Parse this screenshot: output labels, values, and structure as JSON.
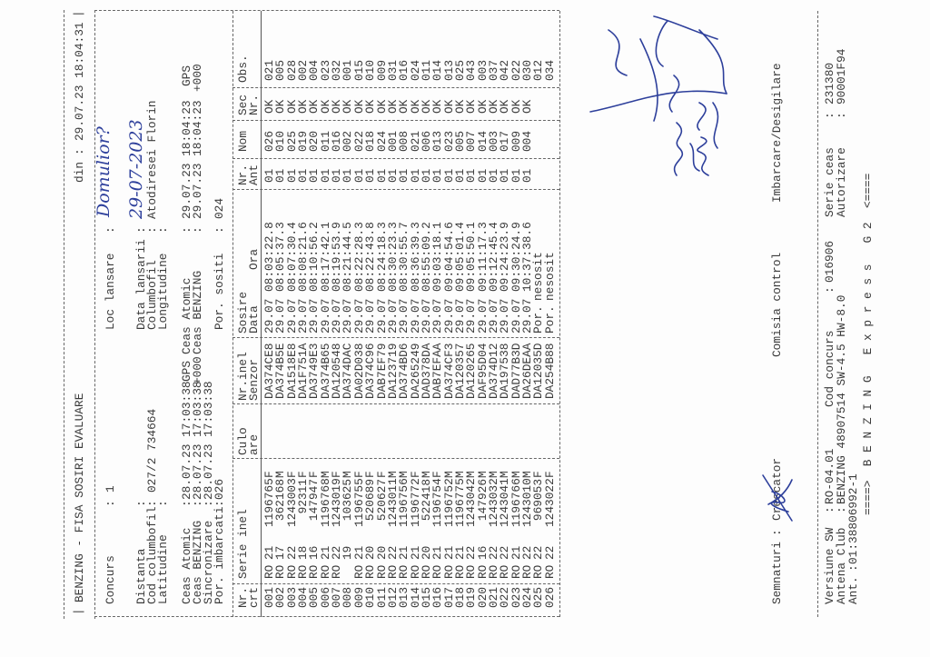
{
  "sep": ":",
  "header": {
    "title": "BENZING - FISA SOSIRI EVALUARE",
    "din_label": "din",
    "din_value": "29.07.23 18:04:31"
  },
  "info": {
    "concurs": {
      "label": "Concurs",
      "value": "1"
    },
    "loc_lansare": {
      "label": "Loc lansare",
      "value": "Domulior?"
    },
    "distanta": {
      "label": "Distanta",
      "value": ""
    },
    "cod_columbofil": {
      "label": "Cod columbofil",
      "value": "027/2 734664"
    },
    "latitudine": {
      "label": "Latitudine",
      "value": ""
    },
    "data_lansarii": {
      "label": "Data lansarii",
      "value": "29-07-2023"
    },
    "columbofil": {
      "label": "Columbofil",
      "value": "Atodiresei Florin"
    },
    "longitudine": {
      "label": "Longitudine",
      "value": ""
    },
    "start_ceas_atomic": {
      "label": "Ceas Atomic",
      "value": "28.07.23 17:03:38",
      "suffix": "GPS"
    },
    "start_ceas_benzing": {
      "label": "Ceas BENZING",
      "value": "28.07.23 17:03:38",
      "suffix": "+000"
    },
    "sincronizare": {
      "label": "Sincronizare",
      "value": "28.07.23 17:03:38"
    },
    "por_imbarcati": {
      "label": "Por. imbarcati",
      "value": "026"
    },
    "end_ceas_atomic": {
      "label": "Ceas Atomic",
      "value": "29.07.23 18:04:23",
      "suffix": "GPS"
    },
    "end_ceas_benzing": {
      "label": "Ceas BENZING",
      "value": "29.07.23 18:04:23",
      "suffix": "+000"
    },
    "por_sositi": {
      "label": "Por. sositi",
      "value": "024"
    }
  },
  "table": {
    "headers": {
      "nr": [
        "Nr.",
        "crt"
      ],
      "serie": "Serie inel",
      "culoare": [
        "Culo",
        "are"
      ],
      "senzor": [
        "Nr.inel",
        "Senzor"
      ],
      "sosire": [
        "Sosire",
        "Data",
        "Ora"
      ],
      "ant": [
        "Nr.",
        "Ant"
      ],
      "nom": "Nom",
      "sec": [
        "Sec",
        "Nr."
      ],
      "obs": "Obs."
    },
    "rows": [
      {
        "nr": "001",
        "country": "RO",
        "year": "21",
        "number": "1196765",
        "sex": "F",
        "sensor": "DA374CE8",
        "date": "29.07",
        "time": "08:03:22.8",
        "ant": "01",
        "nom": "026",
        "sec": "OK",
        "obs": "021"
      },
      {
        "nr": "002",
        "country": "RO",
        "year": "17",
        "number": "362168",
        "sex": "M",
        "sensor": "DA374B5E",
        "date": "29.07",
        "time": "08:05:37.3",
        "ant": "01",
        "nom": "010",
        "sec": "OK",
        "obs": "005"
      },
      {
        "nr": "003",
        "country": "RO",
        "year": "22",
        "number": "1243003",
        "sex": "F",
        "sensor": "DA1518E8",
        "date": "29.07",
        "time": "08:07:30.4",
        "ant": "01",
        "nom": "025",
        "sec": "OK",
        "obs": "028"
      },
      {
        "nr": "004",
        "country": "RO",
        "year": "18",
        "number": "92311",
        "sex": "F",
        "sensor": "DA1F751A",
        "date": "29.07",
        "time": "08:08:21.6",
        "ant": "01",
        "nom": "019",
        "sec": "OK",
        "obs": "002"
      },
      {
        "nr": "005",
        "country": "RO",
        "year": "16",
        "number": "147947",
        "sex": "F",
        "sensor": "DA3749E3",
        "date": "29.07",
        "time": "08:10:56.2",
        "ant": "01",
        "nom": "020",
        "sec": "OK",
        "obs": "004"
      },
      {
        "nr": "006",
        "country": "RO",
        "year": "21",
        "number": "1196768",
        "sex": "M",
        "sensor": "DA374B65",
        "date": "29.07",
        "time": "08:17:42.1",
        "ant": "01",
        "nom": "011",
        "sec": "OK",
        "obs": "023"
      },
      {
        "nr": "007",
        "country": "RO",
        "year": "22",
        "number": "1243019",
        "sex": "F",
        "sensor": "DA120548",
        "date": "29.07",
        "time": "08:19:53.9",
        "ant": "01",
        "nom": "016",
        "sec": "OK",
        "obs": "032"
      },
      {
        "nr": "008",
        "country": "",
        "year": "19",
        "number": "103625",
        "sex": "M",
        "sensor": "DA374DAC",
        "date": "29.07",
        "time": "08:21:44.5",
        "ant": "01",
        "nom": "002",
        "sec": "OK",
        "obs": "001"
      },
      {
        "nr": "009",
        "country": "RO",
        "year": "21",
        "number": "1196755",
        "sex": "F",
        "sensor": "DA02D038",
        "date": "29.07",
        "time": "08:22:28.3",
        "ant": "01",
        "nom": "022",
        "sec": "OK",
        "obs": "015"
      },
      {
        "nr": "010",
        "country": "RO",
        "year": "20",
        "number": "520689",
        "sex": "F",
        "sensor": "DA374C96",
        "date": "29.07",
        "time": "08:22:43.8",
        "ant": "01",
        "nom": "018",
        "sec": "OK",
        "obs": "010"
      },
      {
        "nr": "011",
        "country": "RO",
        "year": "20",
        "number": "520627",
        "sex": "F",
        "sensor": "DAB7EF79",
        "date": "29.07",
        "time": "08:24:18.3",
        "ant": "01",
        "nom": "024",
        "sec": "OK",
        "obs": "009"
      },
      {
        "nr": "012",
        "country": "RO",
        "year": "22",
        "number": "1243011",
        "sex": "M",
        "sensor": "DA123719",
        "date": "29.07",
        "time": "08:30:23.3",
        "ant": "01",
        "nom": "001",
        "sec": "OK",
        "obs": "031"
      },
      {
        "nr": "013",
        "country": "RO",
        "year": "21",
        "number": "1196756",
        "sex": "M",
        "sensor": "DA374BD6",
        "date": "29.07",
        "time": "08:30:55.7",
        "ant": "01",
        "nom": "008",
        "sec": "OK",
        "obs": "016"
      },
      {
        "nr": "014",
        "country": "RO",
        "year": "21",
        "number": "1196772",
        "sex": "F",
        "sensor": "DA265249",
        "date": "29.07",
        "time": "08:36:39.3",
        "ant": "01",
        "nom": "021",
        "sec": "OK",
        "obs": "024"
      },
      {
        "nr": "015",
        "country": "RO",
        "year": "20",
        "number": "522418",
        "sex": "M",
        "sensor": "DAD378DA",
        "date": "29.07",
        "time": "08:55:09.2",
        "ant": "01",
        "nom": "006",
        "sec": "OK",
        "obs": "011"
      },
      {
        "nr": "016",
        "country": "RO",
        "year": "21",
        "number": "1196754",
        "sex": "F",
        "sensor": "DAB7EFAA",
        "date": "29.07",
        "time": "09:03:18.1",
        "ant": "01",
        "nom": "013",
        "sec": "OK",
        "obs": "014"
      },
      {
        "nr": "017",
        "country": "RO",
        "year": "21",
        "number": "1196752",
        "sex": "M",
        "sensor": "DA374CF3",
        "date": "29.07",
        "time": "09:04:54.6",
        "ant": "01",
        "nom": "023",
        "sec": "OK",
        "obs": "013"
      },
      {
        "nr": "018",
        "country": "RO",
        "year": "21",
        "number": "1196775",
        "sex": "M",
        "sensor": "DA120357",
        "date": "29.07",
        "time": "09:05:01.4",
        "ant": "01",
        "nom": "005",
        "sec": "OK",
        "obs": "025"
      },
      {
        "nr": "019",
        "country": "RO",
        "year": "22",
        "number": "1243042",
        "sex": "M",
        "sensor": "DA120265",
        "date": "29.07",
        "time": "09:05:50.1",
        "ant": "01",
        "nom": "007",
        "sec": "OK",
        "obs": "043"
      },
      {
        "nr": "020",
        "country": "RO",
        "year": "16",
        "number": "147926",
        "sex": "M",
        "sensor": "DAF95D04",
        "date": "29.07",
        "time": "09:11:17.3",
        "ant": "01",
        "nom": "014",
        "sec": "OK",
        "obs": "003"
      },
      {
        "nr": "021",
        "country": "RO",
        "year": "22",
        "number": "1243032",
        "sex": "M",
        "sensor": "DA374D12",
        "date": "29.07",
        "time": "09:12:45.4",
        "ant": "01",
        "nom": "003",
        "sec": "OK",
        "obs": "037"
      },
      {
        "nr": "022",
        "country": "RO",
        "year": "22",
        "number": "1243041",
        "sex": "M",
        "sensor": "DA197538",
        "date": "29.07",
        "time": "09:24:23.9",
        "ant": "01",
        "nom": "017",
        "sec": "OK",
        "obs": "042"
      },
      {
        "nr": "023",
        "country": "RO",
        "year": "21",
        "number": "1196766",
        "sex": "M",
        "sensor": "DAD77B3D",
        "date": "29.07",
        "time": "09:30:24.9",
        "ant": "01",
        "nom": "009",
        "sec": "OK",
        "obs": "022"
      },
      {
        "nr": "024",
        "country": "RO",
        "year": "22",
        "number": "1243010",
        "sex": "M",
        "sensor": "DA26DEAA",
        "date": "29.07",
        "time": "10:37:38.6",
        "ant": "01",
        "nom": "004",
        "sec": "OK",
        "obs": "030"
      },
      {
        "nr": "025",
        "country": "RO",
        "year": "22",
        "number": "969053",
        "sex": "F",
        "sensor": "DA12035D",
        "date": "Por.",
        "time": "nesosit",
        "ant": "",
        "nom": "",
        "sec": "",
        "obs": "012"
      },
      {
        "nr": "026",
        "country": "RO",
        "year": "22",
        "number": "1243022",
        "sex": "F",
        "sensor": "DA254B88",
        "date": "Por.",
        "time": "nesosit",
        "ant": "",
        "nom": "",
        "sec": "",
        "obs": "034"
      }
    ]
  },
  "signatures": {
    "label": "Semnaturi",
    "crescator": "Crescator",
    "comisia": "Comisia control",
    "imbarcare": "Imbarcare/Desigilare",
    "ink_color": "#2d3f9b"
  },
  "footer": {
    "versiune_sw": {
      "label": "Versiune SW",
      "value": "RO-04.01"
    },
    "cod_concurs": {
      "label": "Cod concurs",
      "value": "016906"
    },
    "serie_ceas": {
      "label": "Serie ceas",
      "value": "231380"
    },
    "antena_club": {
      "label": "Antena Club",
      "value": "BENZING 48907514 SW-4.5 HW-8.0"
    },
    "autorizare": {
      "label": "Autorizare",
      "value": "90001F94"
    },
    "ant": {
      "label": "Ant.",
      "value": "01:38806992-1"
    },
    "banner": "====>  B E N Z I N G   E x p r e s s   G 2  <===="
  }
}
